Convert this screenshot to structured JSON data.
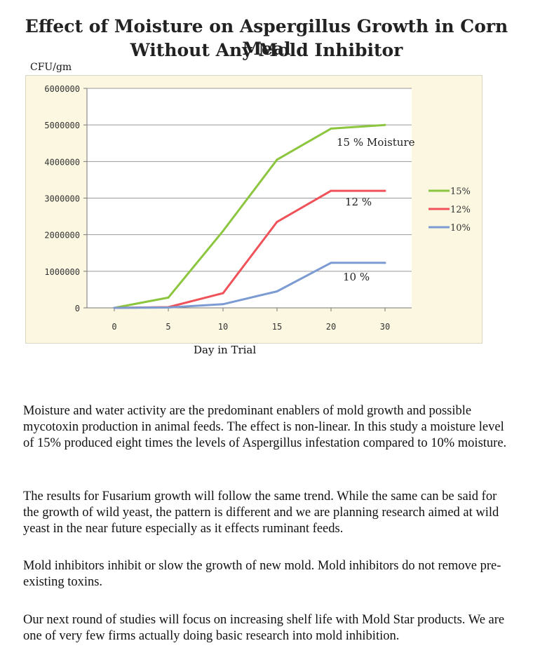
{
  "header": {
    "title_line1": "Effect of Moisture on Aspergillus Growth in Corn Meal",
    "title_line2": "Without Any Mold Inhibitor",
    "unit_label": "CFU/gm"
  },
  "chart_data": {
    "type": "line",
    "title": "Effect of Moisture on Aspergillus Growth in Corn Meal Without Any Mold Inhibitor",
    "xlabel": "Day in Trial",
    "ylabel": "CFU/gm",
    "categories": [
      "0",
      "5",
      "10",
      "15",
      "20",
      "30"
    ],
    "ylim": [
      0,
      6000000
    ],
    "yticks": [
      0,
      1000000,
      2000000,
      3000000,
      4000000,
      5000000,
      6000000
    ],
    "ytick_labels": [
      "0",
      "1000000",
      "2000000",
      "3000000",
      "4000000",
      "5000000",
      "6000000"
    ],
    "grid": true,
    "legend_position": "right",
    "series": [
      {
        "name": "15%",
        "color": "#8cc63f",
        "values": [
          0,
          280000,
          2100000,
          4050000,
          4900000,
          5000000
        ],
        "annotation": "15 % Moisture"
      },
      {
        "name": "12%",
        "color": "#f0525a",
        "values": [
          0,
          20000,
          400000,
          2350000,
          3200000,
          3200000
        ],
        "annotation": "12 %"
      },
      {
        "name": "10%",
        "color": "#7b9bd2",
        "values": [
          0,
          10000,
          100000,
          450000,
          1230000,
          1230000
        ],
        "annotation": "10 %"
      }
    ]
  },
  "paragraphs": [
    "Moisture and water activity are the predominant enablers of mold growth and possible mycotoxin production in animal feeds.  The effect is non-linear. In this study a moisture level of 15%  produced eight times the levels of Aspergillus infestation  compared to 10% moisture.",
    "The results for Fusarium growth will follow the same trend. While the same can be said for the growth of wild yeast, the pattern is different and we are planning research aimed at wild yeast in the near future especially as it effects ruminant feeds.",
    "Mold inhibitors inhibit or slow the growth of new mold. Mold inhibitors do not remove pre-existing toxins.",
    "Our next round of studies will focus on increasing shelf life with Mold Star products. We are one of very few firms actually doing basic research into mold inhibition."
  ]
}
